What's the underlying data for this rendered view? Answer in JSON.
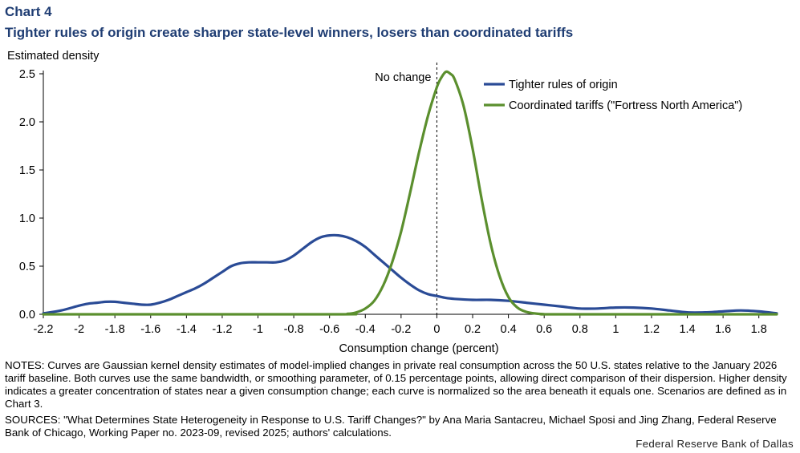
{
  "header": {
    "chart_number": "Chart 4",
    "title": "Tighter rules of origin create sharper state-level winners, losers than coordinated tariffs"
  },
  "footer": {
    "notes": "NOTES: Curves are Gaussian kernel density estimates of model-implied changes in private real consumption across the 50 U.S. states relative to the January 2026 tariff baseline. Both curves use the same bandwidth, or smoothing parameter, of 0.15 percentage points, allowing direct comparison of their dispersion. Higher density indicates a greater concentration of states near a given consumption change; each curve is normalized so the area beneath it equals one. Scenarios are defined as in Chart 3.",
    "sources": "SOURCES: \"What Determines State Heterogeneity in Response to U.S. Tariff Changes?\" by Ana Maria Santacreu, Michael Sposi and Jing Zhang, Federal Reserve Bank of Chicago, Working Paper no. 2023-09, revised 2025; authors' calculations.",
    "credit": "Federal Reserve Bank of Dallas"
  },
  "chart_data": {
    "type": "line",
    "ylabel": "Estimated density",
    "xlabel": "Consumption change (percent)",
    "xlim": [
      -2.2,
      1.9
    ],
    "ylim": [
      0,
      2.5
    ],
    "x_ticks": [
      -2.2,
      -2,
      -1.8,
      -1.6,
      -1.4,
      -1.2,
      -1,
      -0.8,
      -0.6,
      -0.4,
      -0.2,
      0,
      0.2,
      0.4,
      0.6,
      0.8,
      1,
      1.2,
      1.4,
      1.6,
      1.8
    ],
    "x_tick_labels": [
      "-2.2",
      "-2",
      "-1.8",
      "-1.6",
      "-1.4",
      "-1.2",
      "-1",
      "-0.8",
      "-0.6",
      "-0.4",
      "-0.2",
      "0",
      "0.2",
      "0.4",
      "0.6",
      "0.8",
      "1",
      "1.2",
      "1.4",
      "1.6",
      "1.8"
    ],
    "y_ticks": [
      0,
      0.5,
      1,
      1.5,
      2,
      2.5
    ],
    "y_tick_labels": [
      "0.0",
      "0.5",
      "1.0",
      "1.5",
      "2.0",
      "2.5"
    ],
    "grid": false,
    "legend": "top-right",
    "annotations": [
      {
        "text": "No change",
        "x": 0
      }
    ],
    "series": [
      {
        "name": "Tighter rules of origin",
        "color": "#2a4b96",
        "x": [
          -2.2,
          -2.1,
          -2.0,
          -1.95,
          -1.9,
          -1.85,
          -1.8,
          -1.75,
          -1.7,
          -1.65,
          -1.6,
          -1.55,
          -1.5,
          -1.45,
          -1.4,
          -1.35,
          -1.3,
          -1.25,
          -1.2,
          -1.15,
          -1.1,
          -1.05,
          -1.0,
          -0.95,
          -0.9,
          -0.85,
          -0.8,
          -0.75,
          -0.7,
          -0.65,
          -0.6,
          -0.55,
          -0.5,
          -0.45,
          -0.4,
          -0.35,
          -0.3,
          -0.25,
          -0.2,
          -0.15,
          -0.1,
          -0.05,
          0.0,
          0.05,
          0.1,
          0.2,
          0.3,
          0.4,
          0.5,
          0.6,
          0.7,
          0.8,
          0.9,
          1.0,
          1.1,
          1.2,
          1.3,
          1.4,
          1.5,
          1.6,
          1.7,
          1.8,
          1.9
        ],
        "y": [
          0.01,
          0.04,
          0.09,
          0.11,
          0.12,
          0.13,
          0.13,
          0.12,
          0.11,
          0.1,
          0.1,
          0.12,
          0.15,
          0.19,
          0.23,
          0.27,
          0.32,
          0.38,
          0.44,
          0.5,
          0.53,
          0.54,
          0.54,
          0.54,
          0.54,
          0.56,
          0.61,
          0.68,
          0.75,
          0.8,
          0.82,
          0.82,
          0.8,
          0.76,
          0.7,
          0.62,
          0.54,
          0.46,
          0.38,
          0.31,
          0.25,
          0.21,
          0.19,
          0.17,
          0.16,
          0.15,
          0.15,
          0.14,
          0.12,
          0.1,
          0.08,
          0.06,
          0.06,
          0.07,
          0.07,
          0.06,
          0.04,
          0.02,
          0.02,
          0.03,
          0.04,
          0.03,
          0.01
        ]
      },
      {
        "name": "Coordinated tariffs (\"Fortress North America\")",
        "color": "#5b8f2e",
        "x": [
          -2.2,
          -0.6,
          -0.5,
          -0.45,
          -0.4,
          -0.35,
          -0.3,
          -0.25,
          -0.2,
          -0.15,
          -0.1,
          -0.05,
          0.0,
          0.025,
          0.05,
          0.075,
          0.1,
          0.15,
          0.2,
          0.25,
          0.3,
          0.35,
          0.4,
          0.45,
          0.5,
          0.55,
          0.6,
          0.7,
          1.9
        ],
        "y": [
          0,
          0,
          0.005,
          0.02,
          0.06,
          0.14,
          0.3,
          0.54,
          0.86,
          1.26,
          1.68,
          2.06,
          2.36,
          2.46,
          2.52,
          2.5,
          2.44,
          2.16,
          1.72,
          1.2,
          0.74,
          0.4,
          0.18,
          0.07,
          0.025,
          0.008,
          0.002,
          0,
          0
        ]
      }
    ]
  }
}
